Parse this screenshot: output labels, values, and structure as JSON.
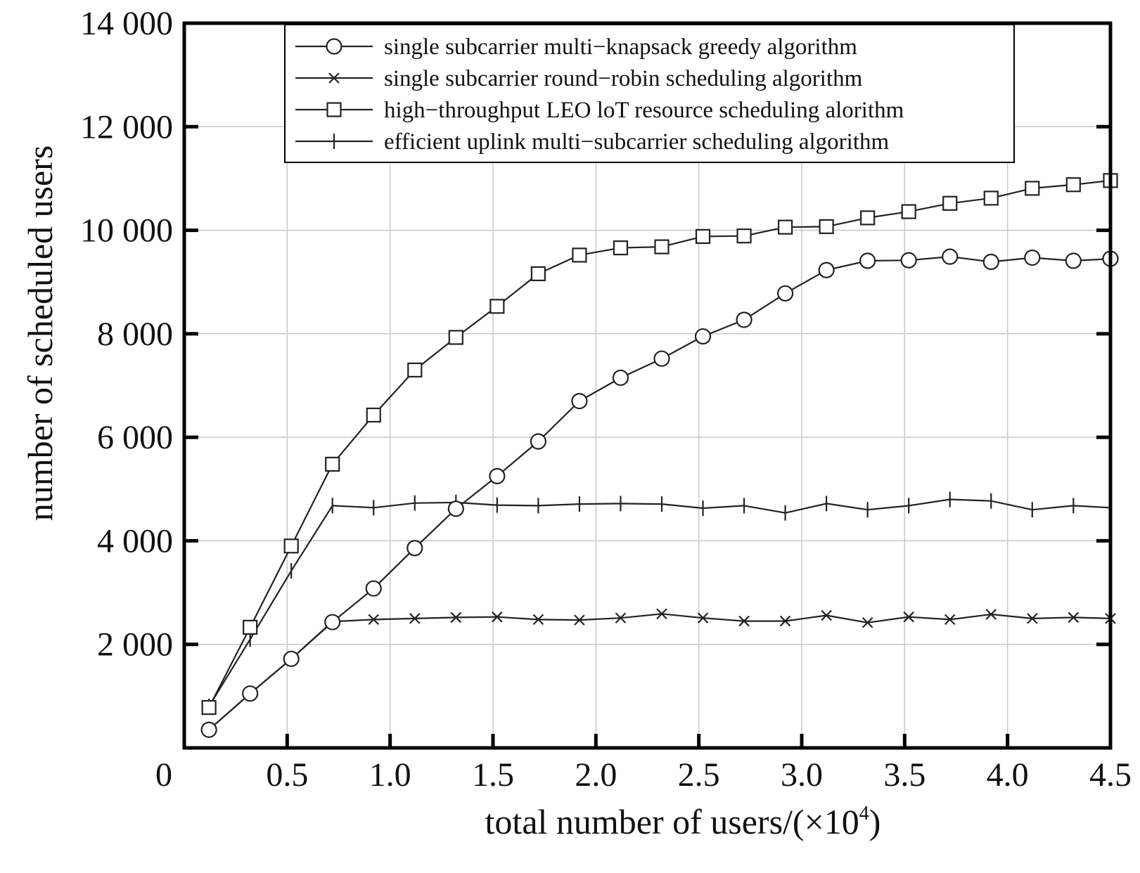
{
  "chart_data": {
    "type": "line",
    "xlabel_prefix": "total number of users/(×10",
    "xlabel_sup": "4",
    "xlabel_suffix": ")",
    "ylabel": "number of scheduled users",
    "xlim": [
      0,
      4.5
    ],
    "ylim": [
      0,
      14000
    ],
    "x_ticks": [
      0,
      0.5,
      1.0,
      1.5,
      2.0,
      2.5,
      3.0,
      3.5,
      4.0,
      4.5
    ],
    "x_tick_labels": [
      "0",
      "0.5",
      "1.0",
      "1.5",
      "2.0",
      "2.5",
      "3.0",
      "3.5",
      "4.0",
      "4.5"
    ],
    "y_ticks": [
      2000,
      4000,
      6000,
      8000,
      10000,
      12000,
      14000
    ],
    "y_tick_labels": [
      "2 000",
      "4 000",
      "6 000",
      "8 000",
      "10 000",
      "12 000",
      "14 000"
    ],
    "grid": true,
    "legend_position": "top",
    "x": [
      0.12,
      0.32,
      0.52,
      0.72,
      0.92,
      1.12,
      1.32,
      1.52,
      1.72,
      1.92,
      2.12,
      2.32,
      2.52,
      2.72,
      2.92,
      3.12,
      3.32,
      3.52,
      3.72,
      3.92,
      4.12,
      4.32,
      4.5
    ],
    "series": [
      {
        "name": "single subcarrier multi−knapsack greedy algorithm",
        "marker": "circle",
        "values": [
          350,
          1050,
          1720,
          2430,
          3080,
          3860,
          4620,
          5250,
          5920,
          6700,
          7150,
          7520,
          7950,
          8270,
          8780,
          9230,
          9410,
          9420,
          9490,
          9390,
          9470,
          9410,
          9450
        ]
      },
      {
        "name": "single subcarrier round−robin scheduling algorithm",
        "marker": "x",
        "values": [
          350,
          1050,
          1720,
          2440,
          2480,
          2500,
          2520,
          2530,
          2480,
          2470,
          2510,
          2590,
          2510,
          2450,
          2450,
          2560,
          2420,
          2530,
          2480,
          2580,
          2500,
          2520,
          2500
        ]
      },
      {
        "name": "high−throughput LEO loT resource scheduling alorithm",
        "marker": "square",
        "values": [
          780,
          2330,
          3900,
          5480,
          6430,
          7300,
          7930,
          8530,
          9160,
          9520,
          9660,
          9680,
          9880,
          9890,
          10060,
          10070,
          10240,
          10360,
          10520,
          10620,
          10810,
          10880,
          10960
        ]
      },
      {
        "name": "efficient uplink multi−subcarrier scheduling algorithm",
        "marker": "plus",
        "values": [
          800,
          2100,
          3420,
          4680,
          4640,
          4730,
          4740,
          4690,
          4680,
          4710,
          4720,
          4710,
          4630,
          4680,
          4540,
          4720,
          4600,
          4680,
          4800,
          4770,
          4600,
          4680,
          4640
        ]
      }
    ]
  }
}
